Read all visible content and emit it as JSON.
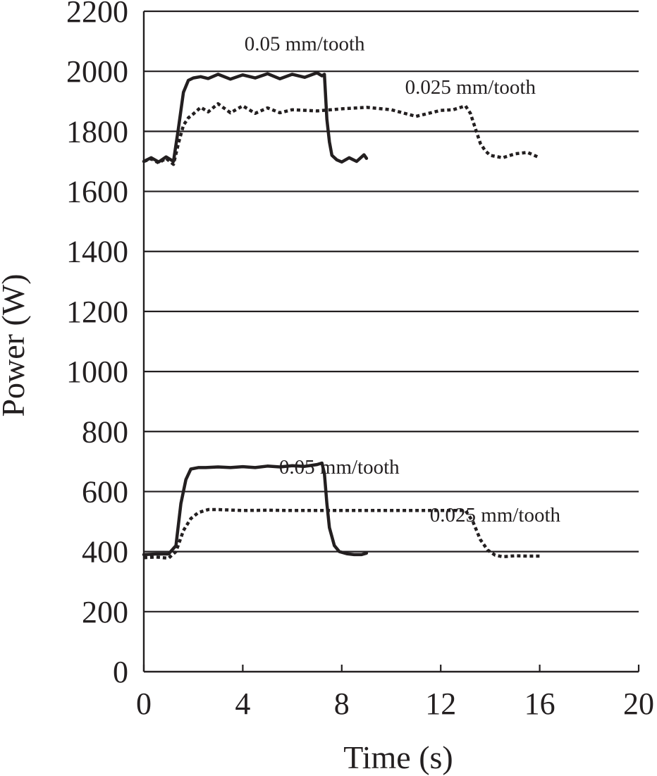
{
  "chart_data": {
    "type": "line",
    "title": "",
    "xlabel": "Time (s)",
    "ylabel": "Power (W)",
    "xlim": [
      0,
      20
    ],
    "ylim": [
      0,
      2200
    ],
    "xticks": [
      0,
      4,
      8,
      12,
      16,
      20
    ],
    "yticks": [
      0,
      200,
      400,
      600,
      800,
      1000,
      1200,
      1400,
      1600,
      1800,
      2000,
      2200
    ],
    "grid": "horizontal",
    "legend": "none",
    "series": [
      {
        "style": "solid",
        "x": [
          0,
          0.3,
          0.6,
          0.9,
          1.2,
          1.4,
          1.6,
          1.8,
          2.0,
          2.3,
          2.6,
          3.0,
          3.5,
          4.0,
          4.5,
          5.0,
          5.5,
          6.0,
          6.5,
          7.0,
          7.2,
          7.3,
          7.4,
          7.5,
          7.6,
          7.8,
          8.0,
          8.3,
          8.6,
          8.9,
          9.0
        ],
        "y": [
          1700,
          1712,
          1698,
          1715,
          1700,
          1810,
          1930,
          1970,
          1978,
          1982,
          1976,
          1990,
          1974,
          1988,
          1978,
          1992,
          1975,
          1990,
          1980,
          1995,
          1985,
          1990,
          1840,
          1765,
          1720,
          1705,
          1698,
          1712,
          1700,
          1722,
          1710
        ]
      },
      {
        "style": "dotted",
        "x": [
          0,
          0.3,
          0.6,
          0.9,
          1.2,
          1.4,
          1.6,
          1.8,
          2.0,
          2.3,
          2.6,
          3.0,
          3.5,
          4.0,
          4.5,
          5.0,
          5.5,
          6.0,
          7.0,
          8.0,
          9.0,
          10.0,
          11.0,
          12.0,
          12.5,
          13.0,
          13.2,
          13.4,
          13.6,
          13.8,
          14.0,
          14.5,
          15.0,
          15.5,
          16.0
        ],
        "y": [
          1700,
          1708,
          1695,
          1710,
          1690,
          1760,
          1820,
          1845,
          1858,
          1880,
          1865,
          1892,
          1862,
          1885,
          1860,
          1878,
          1862,
          1872,
          1868,
          1875,
          1880,
          1872,
          1850,
          1870,
          1872,
          1885,
          1860,
          1810,
          1760,
          1735,
          1720,
          1712,
          1725,
          1730,
          1712
        ]
      },
      {
        "style": "solid",
        "x": [
          0,
          0.5,
          1.0,
          1.3,
          1.5,
          1.7,
          1.9,
          2.2,
          2.5,
          3.0,
          3.5,
          4.0,
          4.5,
          5.0,
          5.5,
          6.0,
          6.5,
          7.0,
          7.2,
          7.3,
          7.4,
          7.5,
          7.7,
          7.9,
          8.2,
          8.5,
          8.8,
          9.0
        ],
        "y": [
          390,
          392,
          392,
          420,
          560,
          640,
          675,
          680,
          680,
          682,
          680,
          683,
          680,
          685,
          682,
          686,
          684,
          690,
          695,
          660,
          560,
          480,
          420,
          400,
          393,
          390,
          390,
          395
        ]
      },
      {
        "style": "dotted",
        "x": [
          0,
          0.5,
          1.0,
          1.3,
          1.6,
          1.9,
          2.2,
          2.6,
          3.0,
          4.0,
          5.0,
          6.0,
          7.0,
          8.0,
          9.0,
          10.0,
          11.0,
          12.0,
          13.0,
          13.3,
          13.6,
          13.9,
          14.2,
          14.5,
          15.0,
          15.5,
          16.0
        ],
        "y": [
          380,
          382,
          378,
          400,
          470,
          510,
          530,
          540,
          540,
          537,
          538,
          537,
          537,
          537,
          537,
          537,
          537,
          537,
          537,
          500,
          440,
          405,
          388,
          383,
          386,
          385,
          385
        ]
      }
    ],
    "annotations": [
      {
        "text": "0.05 mm/tooth",
        "x": 6.5,
        "y": 2070
      },
      {
        "text": "0.025 mm/tooth",
        "x": 13.2,
        "y": 1925
      },
      {
        "text": "0.05 mm/tooth",
        "x": 7.9,
        "y": 660
      },
      {
        "text": "0.025 mm/tooth",
        "x": 14.2,
        "y": 500
      }
    ]
  }
}
